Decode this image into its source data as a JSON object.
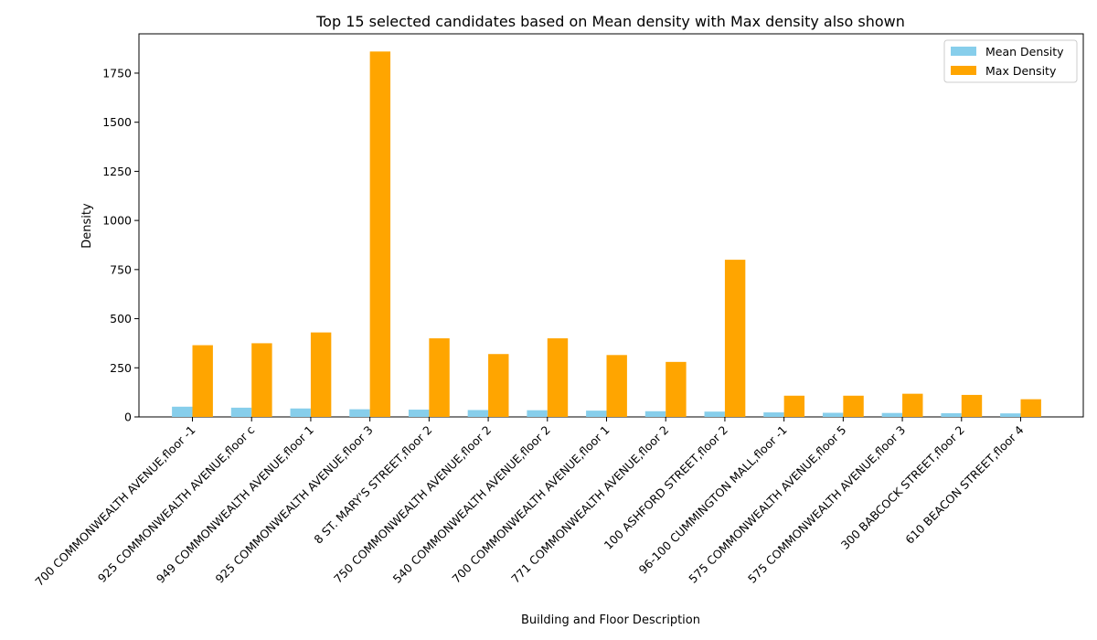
{
  "chart_data": {
    "type": "bar",
    "title": "Top 15 selected candidates based on Mean density with Max density also shown",
    "xlabel": "Building and Floor Description",
    "ylabel": "Density",
    "ylim": [
      0,
      1950
    ],
    "yticks": [
      0,
      250,
      500,
      750,
      1000,
      1250,
      1500,
      1750
    ],
    "grid": false,
    "legend_position": "top-right",
    "categories": [
      "700 COMMONWEALTH AVENUE,floor -1",
      "925 COMMONWEALTH AVENUE,floor c",
      "949 COMMONWEALTH AVENUE,floor 1",
      "925 COMMONWEALTH AVENUE,floor 3",
      "8 ST. MARY'S STREET,floor 2",
      "750 COMMONWEALTH AVENUE,floor 2",
      "540 COMMONWEALTH AVENUE,floor 2",
      "700 COMMONWEALTH AVENUE,floor 1",
      "771 COMMONWEALTH AVENUE,floor 2",
      "100 ASHFORD STREET,floor 2",
      "96-100 CUMMINGTON MALL,floor -1",
      "575 COMMONWEALTH AVENUE,floor 5",
      "575 COMMONWEALTH AVENUE,floor 3",
      "300 BABCOCK STREET,floor 2",
      "610 BEACON STREET,floor 4"
    ],
    "series": [
      {
        "name": "Mean Density",
        "color": "#87ceeb",
        "values": [
          52,
          47,
          43,
          39,
          37,
          35,
          34,
          32,
          29,
          27,
          23,
          21,
          20,
          19,
          18
        ]
      },
      {
        "name": "Max Density",
        "color": "#ffa500",
        "values": [
          365,
          375,
          430,
          1860,
          400,
          320,
          400,
          315,
          280,
          800,
          108,
          108,
          118,
          112,
          90
        ]
      }
    ]
  }
}
